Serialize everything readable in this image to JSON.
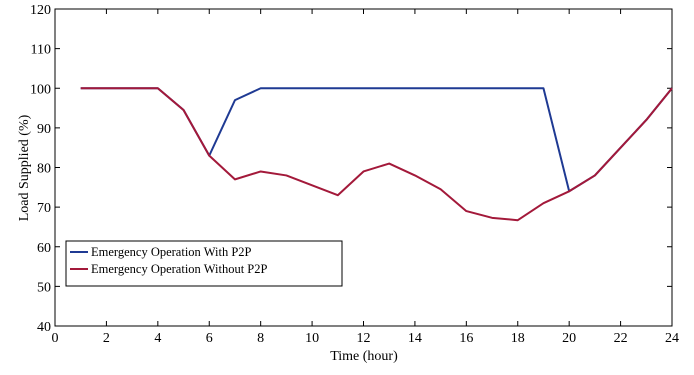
{
  "chart_data": {
    "type": "line",
    "xlabel": "Time (hour)",
    "ylabel": "Load Supplied (%)",
    "xlim": [
      0,
      24
    ],
    "ylim": [
      40,
      120
    ],
    "xticks": [
      0,
      2,
      4,
      6,
      8,
      10,
      12,
      14,
      16,
      18,
      20,
      22,
      24
    ],
    "yticks": [
      40,
      50,
      60,
      70,
      80,
      90,
      100,
      110,
      120
    ],
    "grid": false,
    "legend_position": "bottom-left",
    "series": [
      {
        "name": "Emergency Operation With P2P",
        "color": "#1f3a93",
        "x": [
          1,
          2,
          3,
          4,
          5,
          6,
          7,
          8,
          9,
          10,
          11,
          12,
          13,
          14,
          15,
          16,
          17,
          18,
          19,
          20,
          21,
          22,
          23,
          24
        ],
        "values": [
          100,
          100,
          100,
          100,
          94.5,
          83,
          97,
          100,
          100,
          100,
          100,
          100,
          100,
          100,
          100,
          100,
          100,
          100,
          100,
          74,
          78,
          85,
          92,
          100
        ]
      },
      {
        "name": "Emergency Operation Without P2P",
        "color": "#a3193a",
        "x": [
          1,
          2,
          3,
          4,
          5,
          6,
          7,
          8,
          9,
          10,
          11,
          12,
          13,
          14,
          15,
          16,
          17,
          18,
          19,
          20,
          21,
          22,
          23,
          24
        ],
        "values": [
          100,
          100,
          100,
          100,
          94.5,
          83,
          77,
          79,
          78,
          75.5,
          73,
          79,
          81,
          78,
          74.5,
          69,
          67.3,
          66.7,
          71,
          74,
          78,
          85,
          92,
          100
        ]
      }
    ]
  }
}
